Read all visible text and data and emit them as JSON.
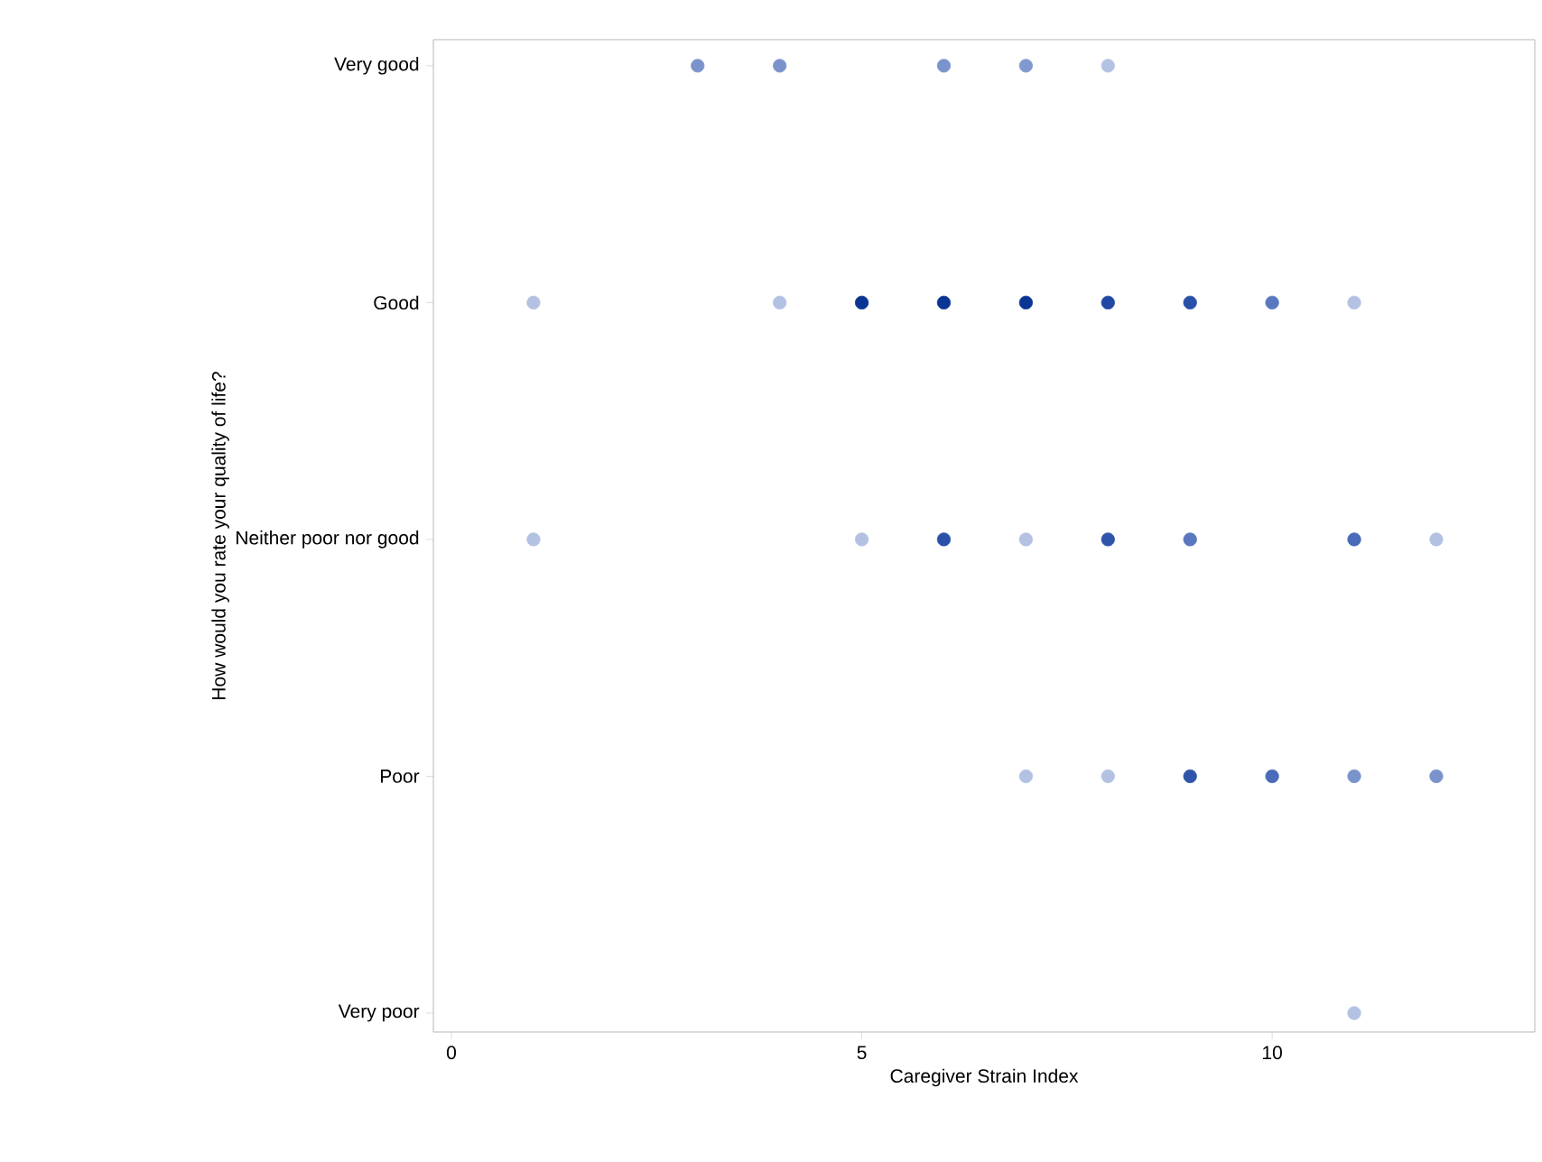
{
  "chart_data": {
    "type": "scatter",
    "orientation": "horizontal",
    "xlabel": "Caregiver Strain Index",
    "ylabel": "How would you rate your quality of life?",
    "categories": [
      "Very good",
      "Good",
      "Neither poor nor good",
      "Poor",
      "Very poor"
    ],
    "xlim": [
      -0.22,
      13.2
    ],
    "xticks": [
      {
        "value": 0,
        "label": "0"
      },
      {
        "value": 5,
        "label": "5"
      },
      {
        "value": 10,
        "label": "10"
      }
    ],
    "marker": "circle",
    "series": [
      {
        "values": [
          3,
          1,
          1,
          7,
          11
        ],
        "colors": [
          "#7b93cc",
          "#b3c2e3",
          "#b3c2e3",
          "#b3c2e3",
          "#b3c2e3"
        ]
      },
      {
        "values": [
          4,
          4,
          5,
          8,
          null
        ],
        "colors": [
          "#7b93cc",
          "#b3c2e3",
          "#b3c2e3",
          "#b3c2e3",
          null
        ]
      },
      {
        "values": [
          6,
          5,
          6,
          9,
          null
        ],
        "colors": [
          "#7b93cc",
          "#0a3593",
          "#2a50a8",
          "#2e55aa",
          null
        ]
      },
      {
        "values": [
          7,
          6,
          7,
          10,
          null
        ],
        "colors": [
          "#8099cf",
          "#0a3593",
          "#b3c2e3",
          "#4a6bb9",
          null
        ]
      },
      {
        "values": [
          8,
          7,
          8,
          11,
          null
        ],
        "colors": [
          "#b3c2e3",
          "#0a3593",
          "#2e55aa",
          "#7b93cc",
          null
        ]
      },
      {
        "values": [
          null,
          8,
          9,
          12,
          null
        ],
        "colors": [
          null,
          "#2148a4",
          "#5a78bf",
          "#7b93cc",
          null
        ]
      },
      {
        "values": [
          null,
          9,
          11,
          null,
          null
        ],
        "colors": [
          null,
          "#2a50a8",
          "#4a6bb9",
          null,
          null
        ]
      },
      {
        "values": [
          null,
          10,
          12,
          null,
          null
        ],
        "colors": [
          null,
          "#5a78bf",
          "#b3c2e3",
          null,
          null
        ]
      },
      {
        "values": [
          null,
          11,
          null,
          null,
          null
        ],
        "colors": [
          null,
          "#b3c2e3",
          null,
          null,
          null
        ]
      }
    ]
  }
}
